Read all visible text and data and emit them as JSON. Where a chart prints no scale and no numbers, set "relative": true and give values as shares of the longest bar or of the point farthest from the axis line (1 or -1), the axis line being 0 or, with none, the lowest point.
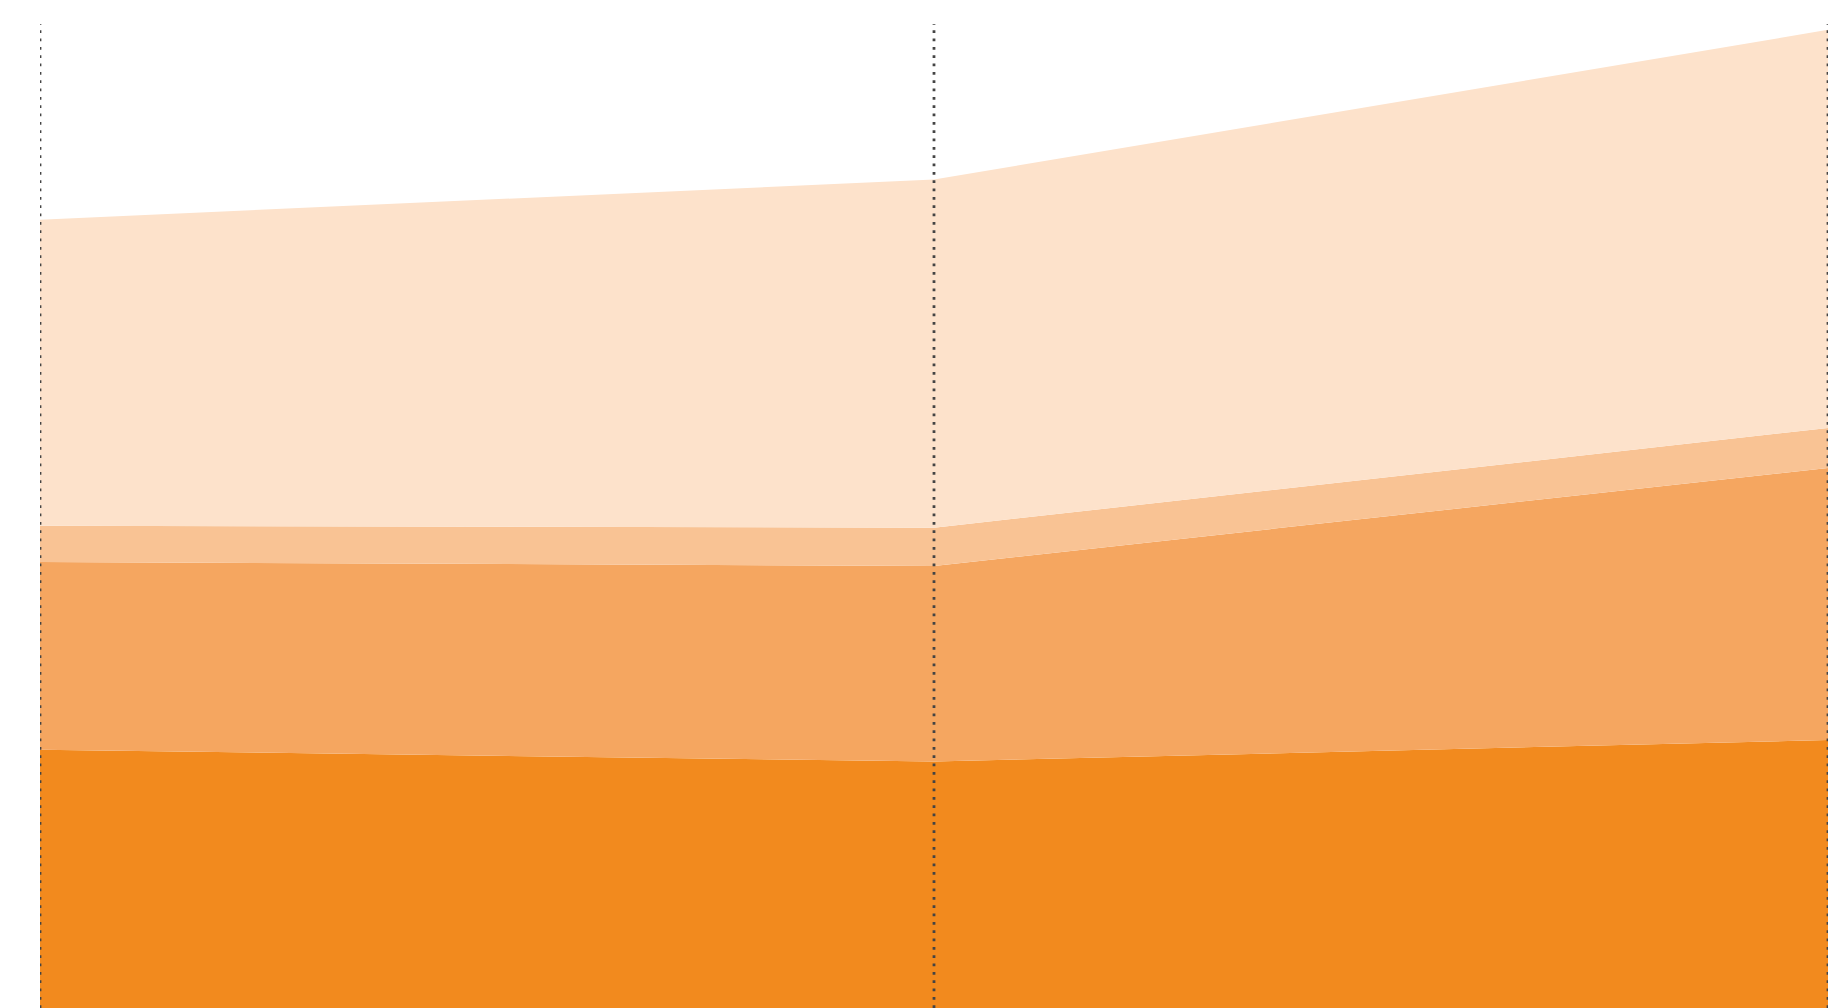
{
  "chart_data": {
    "type": "area",
    "stacked": true,
    "relative": true,
    "categories": [
      null,
      null,
      null
    ],
    "grid": "x",
    "series": [
      {
        "color": "#f28a1e",
        "values": [
          0.264,
          0.252,
          0.274
        ]
      },
      {
        "color": "#f5a660",
        "values": [
          0.192,
          0.2,
          0.278
        ]
      },
      {
        "color": "#f9c394",
        "values": [
          0.037,
          0.039,
          0.041
        ]
      },
      {
        "color": "#fde2cb",
        "values": [
          0.313,
          0.356,
          0.407
        ]
      }
    ]
  }
}
